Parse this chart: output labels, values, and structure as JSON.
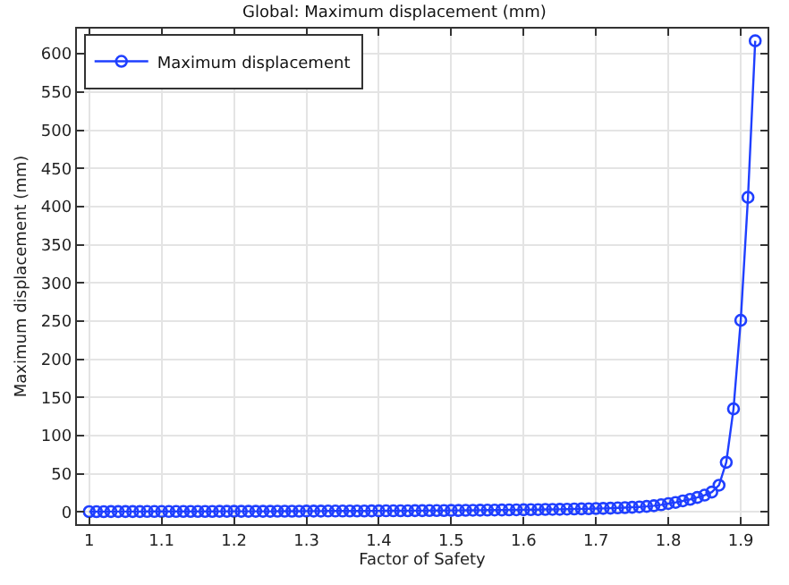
{
  "chart_data": {
    "type": "line",
    "title": "Global: Maximum displacement (mm)",
    "xlabel": "Factor of Safety",
    "ylabel": "Maximum displacement (mm)",
    "x": [
      1.0,
      1.01,
      1.02,
      1.03,
      1.04,
      1.05,
      1.06,
      1.07,
      1.08,
      1.09,
      1.1,
      1.11,
      1.12,
      1.13,
      1.14,
      1.15,
      1.16,
      1.17,
      1.18,
      1.19,
      1.2,
      1.21,
      1.22,
      1.23,
      1.24,
      1.25,
      1.26,
      1.27,
      1.28,
      1.29,
      1.3,
      1.31,
      1.32,
      1.33,
      1.34,
      1.35,
      1.36,
      1.37,
      1.38,
      1.39,
      1.4,
      1.41,
      1.42,
      1.43,
      1.44,
      1.45,
      1.46,
      1.47,
      1.48,
      1.49,
      1.5,
      1.51,
      1.52,
      1.53,
      1.54,
      1.55,
      1.56,
      1.57,
      1.58,
      1.59,
      1.6,
      1.61,
      1.62,
      1.63,
      1.64,
      1.65,
      1.66,
      1.67,
      1.68,
      1.69,
      1.7,
      1.71,
      1.72,
      1.73,
      1.74,
      1.75,
      1.76,
      1.77,
      1.78,
      1.79,
      1.8,
      1.81,
      1.82,
      1.83,
      1.84,
      1.85,
      1.86,
      1.87,
      1.88,
      1.89,
      1.9,
      1.91,
      1.92
    ],
    "series": [
      {
        "name": "Maximum displacement",
        "color": "#1f3fff",
        "values": [
          0.4,
          0.4,
          0.4,
          0.5,
          0.5,
          0.5,
          0.5,
          0.5,
          0.6,
          0.6,
          0.6,
          0.6,
          0.6,
          0.7,
          0.7,
          0.7,
          0.7,
          0.7,
          0.8,
          0.8,
          0.8,
          0.8,
          0.9,
          0.9,
          0.9,
          0.9,
          1,
          1,
          1,
          1,
          1.1,
          1.1,
          1.1,
          1.2,
          1.2,
          1.2,
          1.3,
          1.3,
          1.3,
          1.4,
          1.4,
          1.5,
          1.5,
          1.6,
          1.6,
          1.7,
          1.7,
          1.8,
          1.8,
          1.9,
          2,
          2,
          2.1,
          2.2,
          2.3,
          2.4,
          2.5,
          2.6,
          2.7,
          2.8,
          2.9,
          3,
          3.1,
          3.3,
          3.4,
          3.5,
          3.7,
          3.9,
          4,
          4.2,
          4.5,
          4.7,
          5,
          5.3,
          5.7,
          6.1,
          6.6,
          7.3,
          8.2,
          9.4,
          11,
          12.5,
          14.5,
          16.5,
          19,
          22,
          26,
          35,
          65,
          135,
          251,
          412,
          617
        ]
      }
    ],
    "xlim": [
      0.983,
      1.937
    ],
    "xticks": [
      {
        "value": 1,
        "label": "1"
      },
      1.1,
      1.2,
      1.3,
      1.4,
      1.5,
      1.6,
      1.7,
      1.8,
      1.9
    ],
    "ylim": [
      -16,
      633
    ],
    "yticks": [
      0,
      50,
      100,
      150,
      200,
      250,
      300,
      350,
      400,
      450,
      500,
      550,
      600
    ],
    "grid": true,
    "legend": "top left",
    "marker": "circle",
    "line_style": "solid"
  }
}
